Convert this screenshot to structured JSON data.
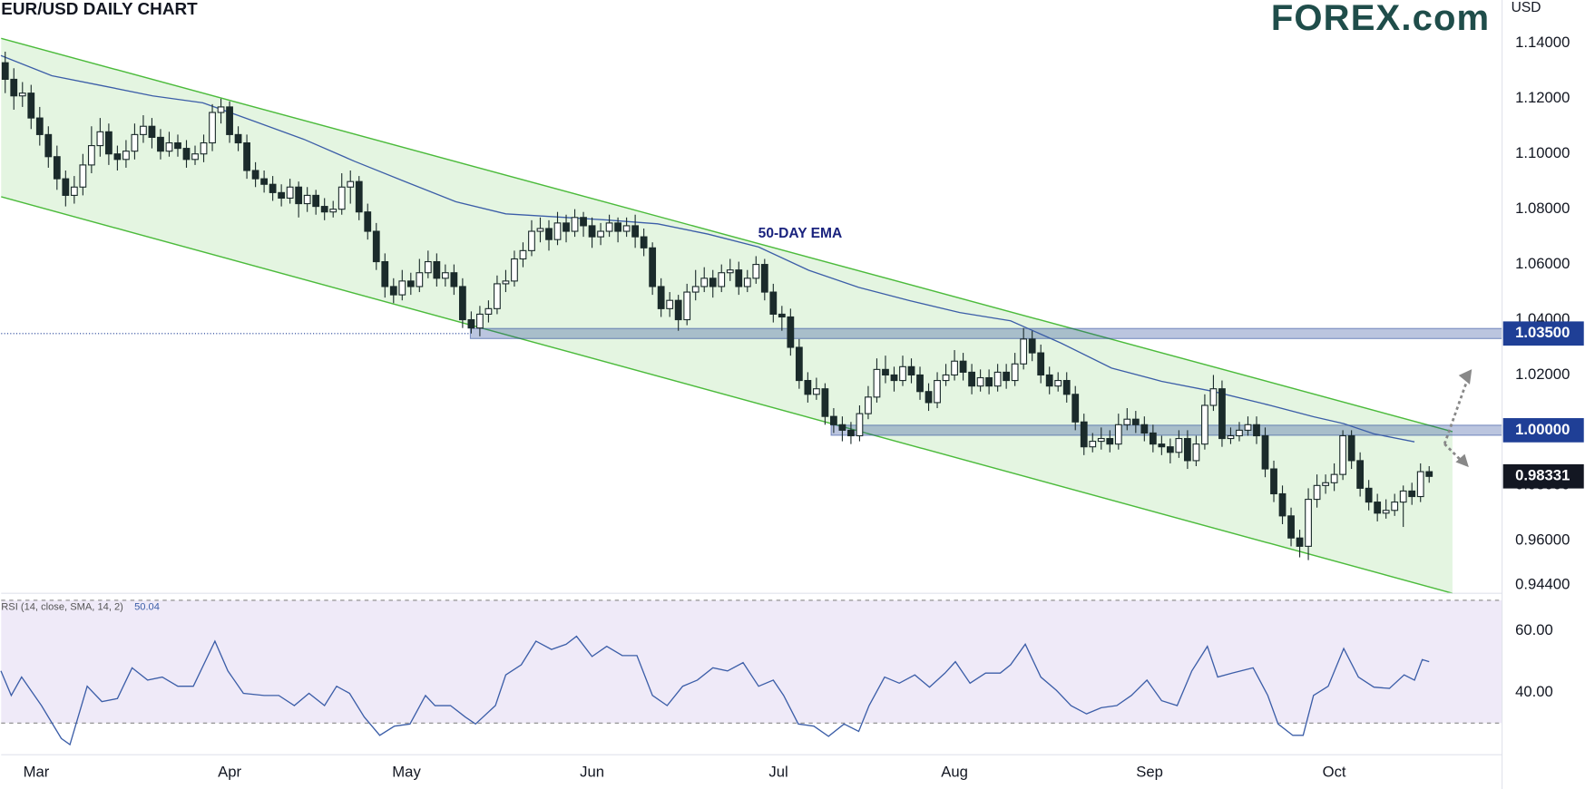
{
  "chart_data": {
    "type": "candlestick",
    "title": "EUR/USD DAILY CHART",
    "axis_label": "USD",
    "logo": "FOREX.com",
    "annotation": "50-DAY EMA",
    "xlim": [
      -0.47,
      173.45
    ],
    "xticks": [
      {
        "value": 3.6,
        "label": "Mar"
      },
      {
        "value": 26,
        "label": "Apr"
      },
      {
        "value": 46.5,
        "label": "May"
      },
      {
        "value": 68,
        "label": "Jun"
      },
      {
        "value": 89.6,
        "label": "Jul"
      },
      {
        "value": 110,
        "label": "Aug"
      },
      {
        "value": 132.6,
        "label": "Sep"
      },
      {
        "value": 154,
        "label": "Oct"
      }
    ],
    "ylim": [
      0.941,
      1.1557
    ],
    "yticks": [
      {
        "value": 0.944,
        "label": "0.94400"
      },
      {
        "value": 0.96,
        "label": "0.96000"
      },
      {
        "value": 0.98,
        "label": "0.98000"
      },
      {
        "value": 1.0,
        "label": "1.00000"
      },
      {
        "value": 1.02,
        "label": "1.02000"
      },
      {
        "value": 1.04,
        "label": "1.04000"
      },
      {
        "value": 1.06,
        "label": "1.06000"
      },
      {
        "value": 1.08,
        "label": "1.08000"
      },
      {
        "value": 1.1,
        "label": "1.10000"
      },
      {
        "value": 1.12,
        "label": "1.12000"
      },
      {
        "value": 1.14,
        "label": "1.14000"
      }
    ],
    "up_color": "#ffffff",
    "down_color": "#1b2b2b",
    "edge_color": "#1b2b2b",
    "ohlc": [
      [
        1.133,
        1.137,
        1.122,
        1.127
      ],
      [
        1.127,
        1.131,
        1.116,
        1.121
      ],
      [
        1.121,
        1.126,
        1.117,
        1.122
      ],
      [
        1.122,
        1.125,
        1.109,
        1.113
      ],
      [
        1.113,
        1.117,
        1.103,
        1.107
      ],
      [
        1.107,
        1.11,
        1.095,
        1.099
      ],
      [
        1.099,
        1.103,
        1.087,
        1.091
      ],
      [
        1.091,
        1.094,
        1.081,
        1.085
      ],
      [
        1.085,
        1.092,
        1.082,
        1.088
      ],
      [
        1.088,
        1.1,
        1.085,
        1.096
      ],
      [
        1.096,
        1.11,
        1.093,
        1.103
      ],
      [
        1.103,
        1.113,
        1.099,
        1.108
      ],
      [
        1.108,
        1.111,
        1.096,
        1.1
      ],
      [
        1.1,
        1.103,
        1.094,
        1.098
      ],
      [
        1.098,
        1.105,
        1.095,
        1.101
      ],
      [
        1.101,
        1.111,
        1.098,
        1.107
      ],
      [
        1.107,
        1.114,
        1.104,
        1.11
      ],
      [
        1.11,
        1.113,
        1.102,
        1.106
      ],
      [
        1.106,
        1.109,
        1.098,
        1.101
      ],
      [
        1.101,
        1.108,
        1.099,
        1.104
      ],
      [
        1.104,
        1.107,
        1.099,
        1.102
      ],
      [
        1.102,
        1.105,
        1.095,
        1.098
      ],
      [
        1.098,
        1.103,
        1.096,
        1.1
      ],
      [
        1.1,
        1.107,
        1.097,
        1.104
      ],
      [
        1.104,
        1.118,
        1.101,
        1.115
      ],
      [
        1.115,
        1.12,
        1.111,
        1.117
      ],
      [
        1.117,
        1.119,
        1.104,
        1.107
      ],
      [
        1.107,
        1.11,
        1.101,
        1.104
      ],
      [
        1.104,
        1.107,
        1.091,
        1.094
      ],
      [
        1.094,
        1.097,
        1.088,
        1.091
      ],
      [
        1.091,
        1.094,
        1.086,
        1.089
      ],
      [
        1.089,
        1.092,
        1.083,
        1.086
      ],
      [
        1.086,
        1.089,
        1.081,
        1.084
      ],
      [
        1.084,
        1.091,
        1.082,
        1.088
      ],
      [
        1.088,
        1.09,
        1.077,
        1.082
      ],
      [
        1.082,
        1.088,
        1.079,
        1.085
      ],
      [
        1.085,
        1.087,
        1.078,
        1.081
      ],
      [
        1.081,
        1.084,
        1.076,
        1.079
      ],
      [
        1.079,
        1.083,
        1.077,
        1.08
      ],
      [
        1.08,
        1.093,
        1.078,
        1.088
      ],
      [
        1.088,
        1.094,
        1.082,
        1.09
      ],
      [
        1.09,
        1.092,
        1.076,
        1.079
      ],
      [
        1.079,
        1.082,
        1.069,
        1.072
      ],
      [
        1.072,
        1.075,
        1.058,
        1.061
      ],
      [
        1.061,
        1.064,
        1.048,
        1.052
      ],
      [
        1.052,
        1.055,
        1.046,
        1.049
      ],
      [
        1.049,
        1.058,
        1.047,
        1.054
      ],
      [
        1.054,
        1.057,
        1.049,
        1.052
      ],
      [
        1.052,
        1.062,
        1.05,
        1.057
      ],
      [
        1.057,
        1.065,
        1.055,
        1.061
      ],
      [
        1.061,
        1.064,
        1.052,
        1.055
      ],
      [
        1.055,
        1.06,
        1.052,
        1.057
      ],
      [
        1.057,
        1.06,
        1.049,
        1.052
      ],
      [
        1.052,
        1.055,
        1.037,
        1.04
      ],
      [
        1.04,
        1.043,
        1.035,
        1.037
      ],
      [
        1.037,
        1.045,
        1.034,
        1.042
      ],
      [
        1.042,
        1.047,
        1.039,
        1.044
      ],
      [
        1.044,
        1.056,
        1.042,
        1.053
      ],
      [
        1.053,
        1.058,
        1.05,
        1.054
      ],
      [
        1.054,
        1.065,
        1.052,
        1.062
      ],
      [
        1.062,
        1.068,
        1.059,
        1.065
      ],
      [
        1.065,
        1.076,
        1.063,
        1.072
      ],
      [
        1.072,
        1.077,
        1.068,
        1.073
      ],
      [
        1.073,
        1.076,
        1.065,
        1.069
      ],
      [
        1.069,
        1.079,
        1.067,
        1.075
      ],
      [
        1.075,
        1.078,
        1.068,
        1.072
      ],
      [
        1.072,
        1.08,
        1.07,
        1.077
      ],
      [
        1.077,
        1.079,
        1.07,
        1.074
      ],
      [
        1.074,
        1.077,
        1.066,
        1.07
      ],
      [
        1.07,
        1.075,
        1.067,
        1.072
      ],
      [
        1.072,
        1.078,
        1.07,
        1.075
      ],
      [
        1.075,
        1.077,
        1.068,
        1.072
      ],
      [
        1.072,
        1.077,
        1.07,
        1.074
      ],
      [
        1.074,
        1.078,
        1.066,
        1.07
      ],
      [
        1.07,
        1.073,
        1.063,
        1.066
      ],
      [
        1.066,
        1.068,
        1.049,
        1.052
      ],
      [
        1.052,
        1.055,
        1.041,
        1.044
      ],
      [
        1.044,
        1.05,
        1.041,
        1.047
      ],
      [
        1.047,
        1.049,
        1.036,
        1.04
      ],
      [
        1.04,
        1.053,
        1.038,
        1.05
      ],
      [
        1.05,
        1.058,
        1.047,
        1.052
      ],
      [
        1.052,
        1.059,
        1.05,
        1.055
      ],
      [
        1.055,
        1.058,
        1.048,
        1.052
      ],
      [
        1.052,
        1.06,
        1.05,
        1.057
      ],
      [
        1.057,
        1.062,
        1.054,
        1.058
      ],
      [
        1.058,
        1.061,
        1.049,
        1.052
      ],
      [
        1.052,
        1.058,
        1.05,
        1.055
      ],
      [
        1.055,
        1.063,
        1.053,
        1.06
      ],
      [
        1.06,
        1.062,
        1.047,
        1.05
      ],
      [
        1.05,
        1.053,
        1.039,
        1.042
      ],
      [
        1.042,
        1.045,
        1.036,
        1.041
      ],
      [
        1.041,
        1.044,
        1.027,
        1.03
      ],
      [
        1.03,
        1.033,
        1.015,
        1.018
      ],
      [
        1.018,
        1.021,
        1.01,
        1.013
      ],
      [
        1.013,
        1.019,
        1.011,
        1.015
      ],
      [
        1.015,
        1.017,
        1.002,
        1.005
      ],
      [
        1.005,
        1.008,
        0.999,
        1.002
      ],
      [
        1.002,
        1.005,
        0.996,
        1.0
      ],
      [
        1.0,
        1.003,
        0.995,
        0.998
      ],
      [
        0.998,
        1.009,
        0.996,
        1.006
      ],
      [
        1.006,
        1.016,
        1.004,
        1.012
      ],
      [
        1.012,
        1.026,
        1.01,
        1.022
      ],
      [
        1.022,
        1.027,
        1.017,
        1.02
      ],
      [
        1.02,
        1.023,
        1.014,
        1.018
      ],
      [
        1.018,
        1.027,
        1.016,
        1.023
      ],
      [
        1.023,
        1.026,
        1.017,
        1.02
      ],
      [
        1.02,
        1.023,
        1.011,
        1.014
      ],
      [
        1.014,
        1.017,
        1.007,
        1.01
      ],
      [
        1.01,
        1.021,
        1.008,
        1.018
      ],
      [
        1.018,
        1.024,
        1.016,
        1.02
      ],
      [
        1.02,
        1.029,
        1.018,
        1.025
      ],
      [
        1.025,
        1.028,
        1.018,
        1.021
      ],
      [
        1.021,
        1.024,
        1.013,
        1.016
      ],
      [
        1.016,
        1.022,
        1.014,
        1.019
      ],
      [
        1.019,
        1.022,
        1.013,
        1.016
      ],
      [
        1.016,
        1.024,
        1.014,
        1.021
      ],
      [
        1.021,
        1.024,
        1.015,
        1.018
      ],
      [
        1.018,
        1.028,
        1.016,
        1.024
      ],
      [
        1.024,
        1.037,
        1.022,
        1.033
      ],
      [
        1.033,
        1.036,
        1.025,
        1.028
      ],
      [
        1.028,
        1.031,
        1.017,
        1.02
      ],
      [
        1.02,
        1.023,
        1.013,
        1.016
      ],
      [
        1.016,
        1.021,
        1.014,
        1.018
      ],
      [
        1.018,
        1.021,
        1.01,
        1.013
      ],
      [
        1.013,
        1.016,
        1.0,
        1.003
      ],
      [
        1.003,
        1.006,
        0.991,
        0.994
      ],
      [
        0.994,
        0.999,
        0.992,
        0.996
      ],
      [
        0.996,
        1.001,
        0.993,
        0.997
      ],
      [
        0.997,
        1.0,
        0.992,
        0.995
      ],
      [
        0.995,
        1.006,
        0.993,
        1.002
      ],
      [
        1.002,
        1.008,
        1.0,
        1.004
      ],
      [
        1.004,
        1.007,
        0.999,
        1.002
      ],
      [
        1.002,
        1.005,
        0.996,
        0.999
      ],
      [
        0.999,
        1.002,
        0.992,
        0.995
      ],
      [
        0.995,
        0.998,
        0.991,
        0.994
      ],
      [
        0.994,
        0.997,
        0.988,
        0.992
      ],
      [
        0.992,
        1.0,
        0.99,
        0.997
      ],
      [
        0.997,
        1.0,
        0.986,
        0.989
      ],
      [
        0.989,
        0.998,
        0.987,
        0.995
      ],
      [
        0.995,
        1.013,
        0.993,
        1.009
      ],
      [
        1.009,
        1.02,
        1.007,
        1.015
      ],
      [
        1.015,
        1.018,
        0.994,
        0.997
      ],
      [
        0.997,
        1.001,
        0.995,
        0.998
      ],
      [
        0.998,
        1.003,
        0.996,
        1.0
      ],
      [
        1.0,
        1.005,
        0.998,
        1.002
      ],
      [
        1.002,
        1.005,
        0.995,
        0.998
      ],
      [
        0.998,
        1.001,
        0.983,
        0.986
      ],
      [
        0.986,
        0.989,
        0.974,
        0.977
      ],
      [
        0.977,
        0.98,
        0.966,
        0.969
      ],
      [
        0.969,
        0.972,
        0.958,
        0.961
      ],
      [
        0.961,
        0.964,
        0.954,
        0.958
      ],
      [
        0.958,
        0.979,
        0.953,
        0.975
      ],
      [
        0.975,
        0.984,
        0.972,
        0.98
      ],
      [
        0.98,
        0.984,
        0.977,
        0.981
      ],
      [
        0.981,
        0.988,
        0.978,
        0.984
      ],
      [
        0.984,
        1.0,
        0.982,
        0.998
      ],
      [
        0.998,
        1.0,
        0.986,
        0.989
      ],
      [
        0.989,
        0.992,
        0.976,
        0.979
      ],
      [
        0.979,
        0.982,
        0.971,
        0.974
      ],
      [
        0.974,
        0.977,
        0.967,
        0.97
      ],
      [
        0.97,
        0.975,
        0.968,
        0.971
      ],
      [
        0.971,
        0.977,
        0.969,
        0.974
      ],
      [
        0.974,
        0.98,
        0.965,
        0.978
      ],
      [
        0.978,
        0.981,
        0.973,
        0.976
      ],
      [
        0.976,
        0.988,
        0.974,
        0.985
      ],
      [
        0.985,
        0.987,
        0.981,
        0.9833
      ]
    ],
    "ema": {
      "color": "#3c5ea8",
      "x": [
        -0.5,
        5.4,
        11.2,
        17.1,
        22.9,
        28.8,
        34.6,
        40.5,
        46.3,
        52.2,
        58,
        63.9,
        69.7,
        75.6,
        81.4,
        87.3,
        93.1,
        98.9,
        104.8,
        110.6,
        116.5,
        122.3,
        128.2,
        134,
        139.9,
        145.7,
        151.6,
        155.1,
        158.6,
        163.3
      ],
      "values": [
        1.1356,
        1.1283,
        1.1247,
        1.121,
        1.1185,
        1.1119,
        1.1053,
        1.0973,
        1.09,
        1.0827,
        1.0783,
        1.0772,
        1.0761,
        1.0747,
        1.071,
        1.0663,
        1.0579,
        1.0517,
        1.0469,
        1.0426,
        1.0396,
        1.0316,
        1.0225,
        1.0177,
        1.0141,
        1.0097,
        1.0049,
        1.0024,
        0.9987,
        0.9958
      ]
    },
    "channel": {
      "color": "#4cbb3c",
      "fill": "#e4f5e1",
      "upper": {
        "x": [
          -0.47,
          167.7
        ],
        "y": [
          1.1418,
          0.9995
        ]
      },
      "lower": {
        "x": [
          -0.47,
          167.7
        ],
        "y": [
          1.0845,
          0.941
        ]
      }
    },
    "levels": [
      {
        "value": 1.035,
        "label": "1.03500",
        "x": 53.9
      },
      {
        "value": 1.0,
        "label": "1.00000",
        "x": 95.7
      }
    ],
    "level_color": "#1f3f96",
    "last_price": {
      "value": 0.98331,
      "label": "0.98331"
    },
    "rsi": {
      "label": "RSI (14, close, SMA, 14, 2)",
      "last": 50.04,
      "color": "#3c5ea8",
      "ylim": [
        19.7,
        72.3
      ],
      "yticks": [
        {
          "value": 60,
          "label": "60.00"
        },
        {
          "value": 40,
          "label": "40.00"
        }
      ],
      "bands": [
        30,
        70
      ],
      "x": [
        -0.5,
        0.7,
        1.9,
        4.2,
        6.5,
        7.5,
        9.5,
        11.2,
        13,
        14.7,
        16.5,
        18.2,
        20,
        21.8,
        23.5,
        24.3,
        25.8,
        27.6,
        30,
        31.7,
        33.5,
        35.2,
        37,
        38.4,
        39.9,
        41.6,
        43.4,
        45.1,
        46.9,
        48.7,
        49.8,
        51.6,
        53.3,
        54.5,
        56.8,
        58,
        59.8,
        61.5,
        63.3,
        65,
        66.2,
        68,
        69.7,
        71.5,
        73.2,
        75,
        76.7,
        78.5,
        80.2,
        82,
        83.7,
        85.5,
        87.3,
        89,
        90.2,
        91.9,
        93.7,
        95.4,
        97.2,
        98.9,
        100.1,
        101.9,
        103.6,
        105.4,
        107.1,
        108.9,
        110.1,
        111.8,
        113.6,
        115.3,
        116.5,
        118.2,
        120,
        121.8,
        123.5,
        125.3,
        127,
        128.8,
        130.5,
        132.3,
        134,
        135.8,
        137.5,
        139.3,
        140.5,
        142.2,
        144.6,
        146.3,
        147.5,
        149.2,
        150.4,
        151.6,
        153.3,
        155.1,
        156.8,
        158.6,
        160.4,
        162.1,
        163.3,
        164.2,
        165
      ],
      "values": [
        47,
        39,
        45,
        35.7,
        25,
        23,
        42,
        37,
        38,
        48,
        44,
        45,
        42,
        42,
        52,
        56.7,
        47,
        39.7,
        39,
        39,
        35.7,
        39.7,
        35.7,
        42,
        39.7,
        32,
        26,
        29,
        29.7,
        39,
        35.7,
        35.7,
        32,
        29.7,
        35.7,
        45.7,
        49,
        56.7,
        54,
        55.7,
        58.3,
        51.7,
        55,
        52,
        52,
        39,
        35.7,
        42,
        44,
        48,
        47,
        49.7,
        42,
        44,
        39,
        29.7,
        29,
        25.7,
        29.7,
        27.3,
        35.7,
        45,
        43,
        45.7,
        41.7,
        46.3,
        50,
        43,
        46.3,
        46.3,
        49,
        55.7,
        45,
        40.7,
        35.7,
        33,
        35,
        35.7,
        39,
        44,
        37.3,
        35.7,
        47,
        55,
        45,
        46.3,
        48,
        39,
        29.7,
        26,
        26,
        39,
        42,
        54.3,
        45,
        41.7,
        41.3,
        45.7,
        44,
        50.7,
        50
      ]
    }
  }
}
